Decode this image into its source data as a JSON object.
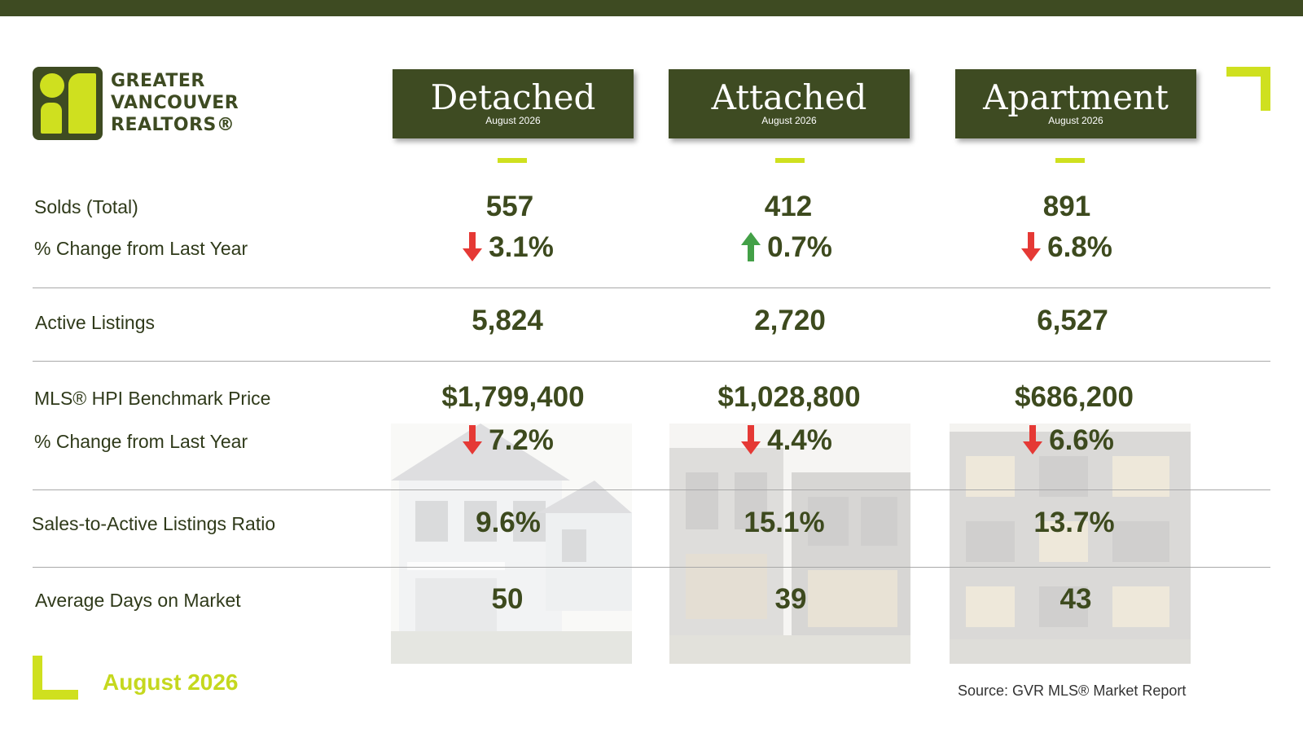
{
  "logo": {
    "line1": "GREATER",
    "line2": "VANCOUVER",
    "line3": "REALTORS®"
  },
  "columns": [
    {
      "title": "Detached",
      "subtitle": "August 2026"
    },
    {
      "title": "Attached",
      "subtitle": "August 2026"
    },
    {
      "title": "Apartment",
      "subtitle": "August 2026"
    }
  ],
  "rows": {
    "solds_label": "Solds (Total)",
    "solds_change_label": "% Change from Last Year",
    "active_label": "Active Listings",
    "hpi_label": "MLS® HPI Benchmark Price",
    "hpi_change_label": "% Change from Last Year",
    "ratio_label": "Sales-to-Active Listings Ratio",
    "dom_label": "Average Days on Market"
  },
  "values": {
    "solds": [
      "557",
      "412",
      "891"
    ],
    "solds_change": [
      "3.1%",
      "0.7%",
      "6.8%"
    ],
    "solds_change_direction": [
      "down",
      "up",
      "down"
    ],
    "active": [
      "5,824",
      "2,720",
      "6,527"
    ],
    "hpi": [
      "$1,799,400",
      "$1,028,800",
      "$686,200"
    ],
    "hpi_change": [
      "7.2%",
      "4.4%",
      "6.6%"
    ],
    "hpi_change_direction": [
      "down",
      "down",
      "down"
    ],
    "ratio": [
      "9.6%",
      "15.1%",
      "13.7%"
    ],
    "dom": [
      "50",
      "39",
      "43"
    ]
  },
  "footer": {
    "date": "August 2026",
    "source": "Source: GVR MLS® Market Report"
  },
  "colors": {
    "brand_dark": "#3e4b22",
    "brand_accent": "#cfe01f",
    "down": "#e53935",
    "up": "#43a047"
  }
}
